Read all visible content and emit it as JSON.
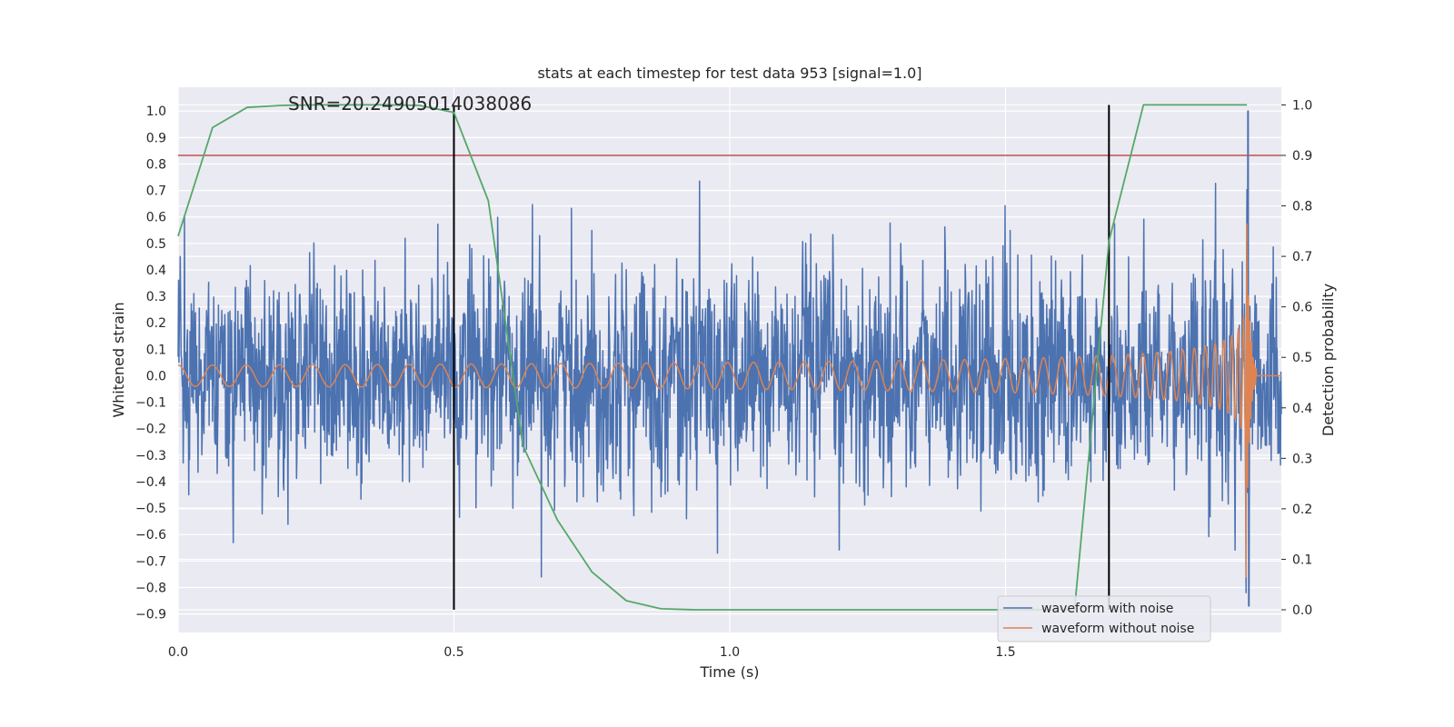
{
  "chart_data": {
    "type": "line",
    "title": "stats at each timestep for test data 953 [signal=1.0]",
    "xlabel": "Time (s)",
    "ylabel": "Whitened strain",
    "y2label": "Detection probability",
    "xlim": [
      0.0,
      2.0
    ],
    "ylim": [
      -0.97,
      1.09
    ],
    "y2lim": [
      -0.045,
      1.035
    ],
    "x_ticks": [
      0.0,
      0.5,
      1.0,
      1.5
    ],
    "x_tick_labels": [
      "0.0",
      "0.5",
      "1.0",
      "1.5"
    ],
    "y_ticks": [
      1.0,
      0.9,
      0.8,
      0.7,
      0.6,
      0.5,
      0.4,
      0.3,
      0.2,
      0.1,
      0.0,
      -0.1,
      -0.2,
      -0.3,
      -0.4,
      -0.5,
      -0.6,
      -0.7,
      -0.8,
      -0.9
    ],
    "y_tick_labels": [
      "1.0",
      "0.9",
      "0.8",
      "0.7",
      "0.6",
      "0.5",
      "0.4",
      "0.3",
      "0.2",
      "0.1",
      "0.0",
      "−0.1",
      "−0.2",
      "−0.3",
      "−0.4",
      "−0.5",
      "−0.6",
      "−0.7",
      "−0.8",
      "−0.9"
    ],
    "y2_ticks": [
      1.0,
      0.9,
      0.8,
      0.7,
      0.6,
      0.5,
      0.4,
      0.3,
      0.2,
      0.1,
      0.0
    ],
    "y2_tick_labels": [
      "1.0",
      "0.9",
      "0.8",
      "0.7",
      "0.6",
      "0.5",
      "0.4",
      "0.3",
      "0.2",
      "0.1",
      "0.0"
    ],
    "grid": true,
    "legend_position": "bottom-right",
    "annotation": "SNR=20.24905014038086",
    "series": [
      {
        "name": "waveform with noise",
        "axis": "left",
        "color": "#4c72b0",
        "style": "noise",
        "t_range": [
          0.0,
          2.0
        ],
        "amplitude_typical": 0.2,
        "peak_min": -0.87,
        "peak_max": 1.0,
        "peak_time": 1.94
      },
      {
        "name": "waveform without noise",
        "axis": "left",
        "color": "#dd8452",
        "style": "chirp",
        "t_range": [
          0.0,
          2.0
        ],
        "merger_time": 1.94,
        "amplitude_start": 0.04,
        "amplitude_peak": 0.66,
        "frequency_start_hz": 16
      }
    ],
    "detection_probability": {
      "axis": "right",
      "color": "#55a868",
      "x": [
        0.0,
        0.0625,
        0.125,
        0.1875,
        0.25,
        0.3125,
        0.375,
        0.4375,
        0.5,
        0.5625,
        0.625,
        0.6875,
        0.75,
        0.8125,
        0.875,
        0.9375,
        1.0,
        1.0625,
        1.125,
        1.1875,
        1.25,
        1.3125,
        1.375,
        1.4375,
        1.5,
        1.5625,
        1.625,
        1.6875,
        1.75,
        1.8125,
        1.875,
        1.9375
      ],
      "y": [
        0.74,
        0.955,
        0.995,
        0.999,
        1.0,
        1.0,
        1.0,
        0.999,
        0.985,
        0.81,
        0.325,
        0.178,
        0.075,
        0.018,
        0.002,
        0.0,
        0.0,
        0.0,
        0.0,
        0.0,
        0.0,
        0.0,
        0.0,
        0.0,
        0.0,
        0.0,
        0.0,
        0.73,
        1.0,
        1.0,
        1.0,
        1.0
      ]
    },
    "threshold": {
      "axis": "right",
      "value": 0.9,
      "color": "#c44e52"
    },
    "markers": [
      {
        "x": 0.5,
        "y2_from": 0.0,
        "y2_to": 1.0,
        "color": "#000000"
      },
      {
        "x": 1.6875,
        "y2_from": 0.0,
        "y2_to": 1.0,
        "color": "#000000"
      }
    ]
  }
}
